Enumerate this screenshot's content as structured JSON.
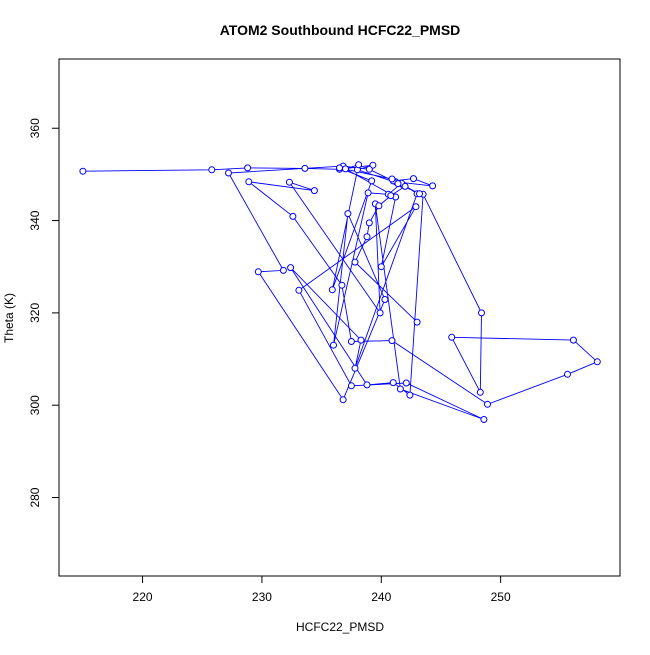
{
  "chart_data": {
    "type": "line",
    "title": "ATOM2 Southbound HCFC22_PMSD",
    "xlabel": "HCFC22_PMSD",
    "ylabel": "Theta (K)",
    "xlim": [
      213,
      260
    ],
    "ylim": [
      263,
      375
    ],
    "xticks": [
      220,
      230,
      240,
      250
    ],
    "yticks": [
      280,
      300,
      320,
      340,
      360
    ],
    "grid": false,
    "legend": "none",
    "markers": "open-circle",
    "colors": {
      "series": "#0000ff",
      "axes": "#000000",
      "background": "#ffffff"
    },
    "series": [
      {
        "x": [
          215.0,
          225.8,
          228.8,
          233.6,
          236.5,
          239.3,
          238.0,
          241.8,
          241.2,
          244.3,
          242.7,
          241.0,
          239.0,
          236.8,
          227.2,
          231.8,
          229.7,
          236.8,
          240.3,
          237.2,
          236.0,
          238.9,
          240.6,
          241.7,
          243.0,
          237.8,
          238.3,
          232.4,
          238.8,
          241.0,
          242.4,
          243.5,
          248.4,
          248.3,
          245.9,
          256.1,
          258.1,
          255.6,
          248.9,
          240.9,
          237.5,
          236.7,
          232.6,
          228.9,
          234.4,
          232.3,
          239.9,
          239.5,
          241.6,
          248.6,
          242.1,
          237.5,
          233.1,
          242.9,
          240.0,
          241.2,
          237.0,
          238.1,
          235.9,
          239.2,
          236.5,
          240.9,
          241.4,
          243.2,
          242.0,
          240.8,
          239.8,
          239.0,
          238.8,
          237.8,
          243.0
        ],
        "y": [
          350.7,
          351.0,
          351.4,
          351.3,
          351.1,
          352.0,
          351.0,
          347.8,
          348.4,
          347.5,
          349.1,
          348.6,
          351.1,
          351.8,
          350.3,
          329.2,
          328.9,
          301.2,
          322.9,
          341.5,
          313.0,
          346.0,
          345.7,
          348.1,
          345.8,
          308.0,
          314.1,
          329.8,
          304.4,
          304.9,
          302.2,
          345.7,
          320.0,
          302.8,
          314.7,
          314.1,
          309.4,
          306.7,
          300.2,
          314.0,
          313.8,
          326.0,
          340.9,
          348.4,
          346.5,
          348.3,
          320.0,
          343.6,
          303.5,
          296.9,
          304.8,
          304.2,
          324.9,
          343.0,
          330.0,
          345.1,
          351.2,
          352.1,
          325.0,
          348.6,
          351.4,
          349.0,
          348.0,
          345.8,
          347.4,
          345.4,
          343.2,
          339.5,
          336.5,
          331.0,
          318.0
        ]
      }
    ]
  }
}
